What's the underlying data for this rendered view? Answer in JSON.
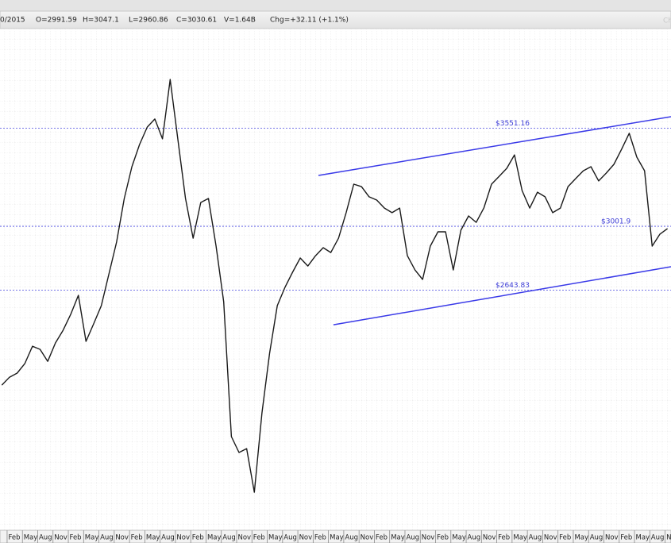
{
  "header": {
    "fields": [
      "0/2015",
      "O=2991.59",
      "H=3047.1",
      "L=2960.86",
      "C=3030.61",
      "V=1.64B",
      "Chg=+32.11 (+1.1%)"
    ],
    "watermark": "Ch"
  },
  "chart_data": {
    "type": "line",
    "color": "#1a1a1a",
    "x": [
      -0.5,
      0,
      0.5,
      1,
      1.5,
      2,
      2.5,
      3,
      3.5,
      4,
      4.5,
      5,
      5.5,
      6,
      6.5,
      7,
      7.5,
      8,
      8.5,
      9,
      9.5,
      10,
      10.5,
      11,
      11.5,
      12,
      12.5,
      13,
      13.5,
      14,
      14.5,
      15,
      15.5,
      16,
      16.5,
      17,
      17.5,
      18,
      18.5,
      19,
      19.5,
      20,
      20.5,
      21,
      21.5,
      22,
      22.5,
      23,
      23.5,
      24,
      24.5,
      25,
      25.5,
      26,
      26.5,
      27,
      27.5,
      28,
      28.5,
      29,
      29.5,
      30,
      30.5,
      31,
      31.5,
      32,
      32.5,
      33,
      33.5,
      34,
      34.5,
      35,
      35.5,
      36,
      36.5,
      37,
      37.5,
      38,
      38.5,
      39,
      39.5,
      40,
      40.5,
      41,
      41.5,
      42,
      42.5,
      43
    ],
    "values": [
      2112,
      2156,
      2179,
      2232,
      2330,
      2312,
      2245,
      2348,
      2419,
      2508,
      2615,
      2357,
      2455,
      2557,
      2735,
      2913,
      3158,
      3336,
      3460,
      3558,
      3603,
      3492,
      3825,
      3492,
      3158,
      2935,
      3135,
      3158,
      2891,
      2579,
      1823,
      1734,
      1756,
      1511,
      1956,
      2290,
      2557,
      2659,
      2744,
      2824,
      2779,
      2837,
      2882,
      2855,
      2935,
      3078,
      3238,
      3224,
      3167,
      3149,
      3104,
      3078,
      3104,
      2837,
      2757,
      2704,
      2891,
      2971,
      2971,
      2757,
      2980,
      3060,
      3024,
      3104,
      3238,
      3282,
      3327,
      3402,
      3202,
      3104,
      3193,
      3167,
      3078,
      3104,
      3224,
      3269,
      3313,
      3336,
      3256,
      3300,
      3349,
      3434,
      3523,
      3389,
      3313,
      2891,
      2957,
      2989
    ],
    "xlim": [
      -0.62,
      43.23
    ],
    "ylim": [
      1298,
      4110
    ],
    "xticks": [
      {
        "value": 0,
        "label": "Feb"
      },
      {
        "value": 1,
        "label": "May"
      },
      {
        "value": 2,
        "label": "Aug"
      },
      {
        "value": 3,
        "label": "Nov"
      },
      {
        "value": 4,
        "label": "Feb"
      },
      {
        "value": 5,
        "label": "May"
      },
      {
        "value": 6,
        "label": "Aug"
      },
      {
        "value": 7,
        "label": "Nov"
      },
      {
        "value": 8,
        "label": "Feb"
      },
      {
        "value": 9,
        "label": "May"
      },
      {
        "value": 10,
        "label": "Aug"
      },
      {
        "value": 11,
        "label": "Nov"
      },
      {
        "value": 12,
        "label": "Feb"
      },
      {
        "value": 13,
        "label": "May"
      },
      {
        "value": 14,
        "label": "Aug"
      },
      {
        "value": 15,
        "label": "Nov"
      },
      {
        "value": 16,
        "label": "Feb"
      },
      {
        "value": 17,
        "label": "May"
      },
      {
        "value": 18,
        "label": "Aug"
      },
      {
        "value": 19,
        "label": "Nov"
      },
      {
        "value": 20,
        "label": "Feb"
      },
      {
        "value": 21,
        "label": "May"
      },
      {
        "value": 22,
        "label": "Aug"
      },
      {
        "value": 23,
        "label": "Nov"
      },
      {
        "value": 24,
        "label": "Feb"
      },
      {
        "value": 25,
        "label": "May"
      },
      {
        "value": 26,
        "label": "Aug"
      },
      {
        "value": 27,
        "label": "Nov"
      },
      {
        "value": 28,
        "label": "Feb"
      },
      {
        "value": 29,
        "label": "May"
      },
      {
        "value": 30,
        "label": "Aug"
      },
      {
        "value": 31,
        "label": "Nov"
      },
      {
        "value": 32,
        "label": "Feb"
      },
      {
        "value": 33,
        "label": "May"
      },
      {
        "value": 34,
        "label": "Aug"
      },
      {
        "value": 35,
        "label": "Nov"
      },
      {
        "value": 36,
        "label": "Feb"
      },
      {
        "value": 37,
        "label": "May"
      },
      {
        "value": 38,
        "label": "Aug"
      },
      {
        "value": 39,
        "label": "Nov"
      },
      {
        "value": 40,
        "label": "Feb"
      },
      {
        "value": 41,
        "label": "May"
      },
      {
        "value": 42,
        "label": "Aug"
      },
      {
        "value": 43,
        "label": "Nov"
      }
    ],
    "levels": [
      {
        "value": 3551.16,
        "label": "$3551.16"
      },
      {
        "value": 3001.9,
        "label": "$3001.9"
      },
      {
        "value": 2643.83,
        "label": "$2643.83"
      }
    ],
    "level_color": "#4a4ae0",
    "trendlines": [
      {
        "x": [
          20.19,
          43.23
        ],
        "y": [
          3287,
          3616
        ]
      },
      {
        "x": [
          21.17,
          43.23
        ],
        "y": [
          2450,
          2775
        ]
      }
    ],
    "trend_color": "#3a3ae8"
  }
}
